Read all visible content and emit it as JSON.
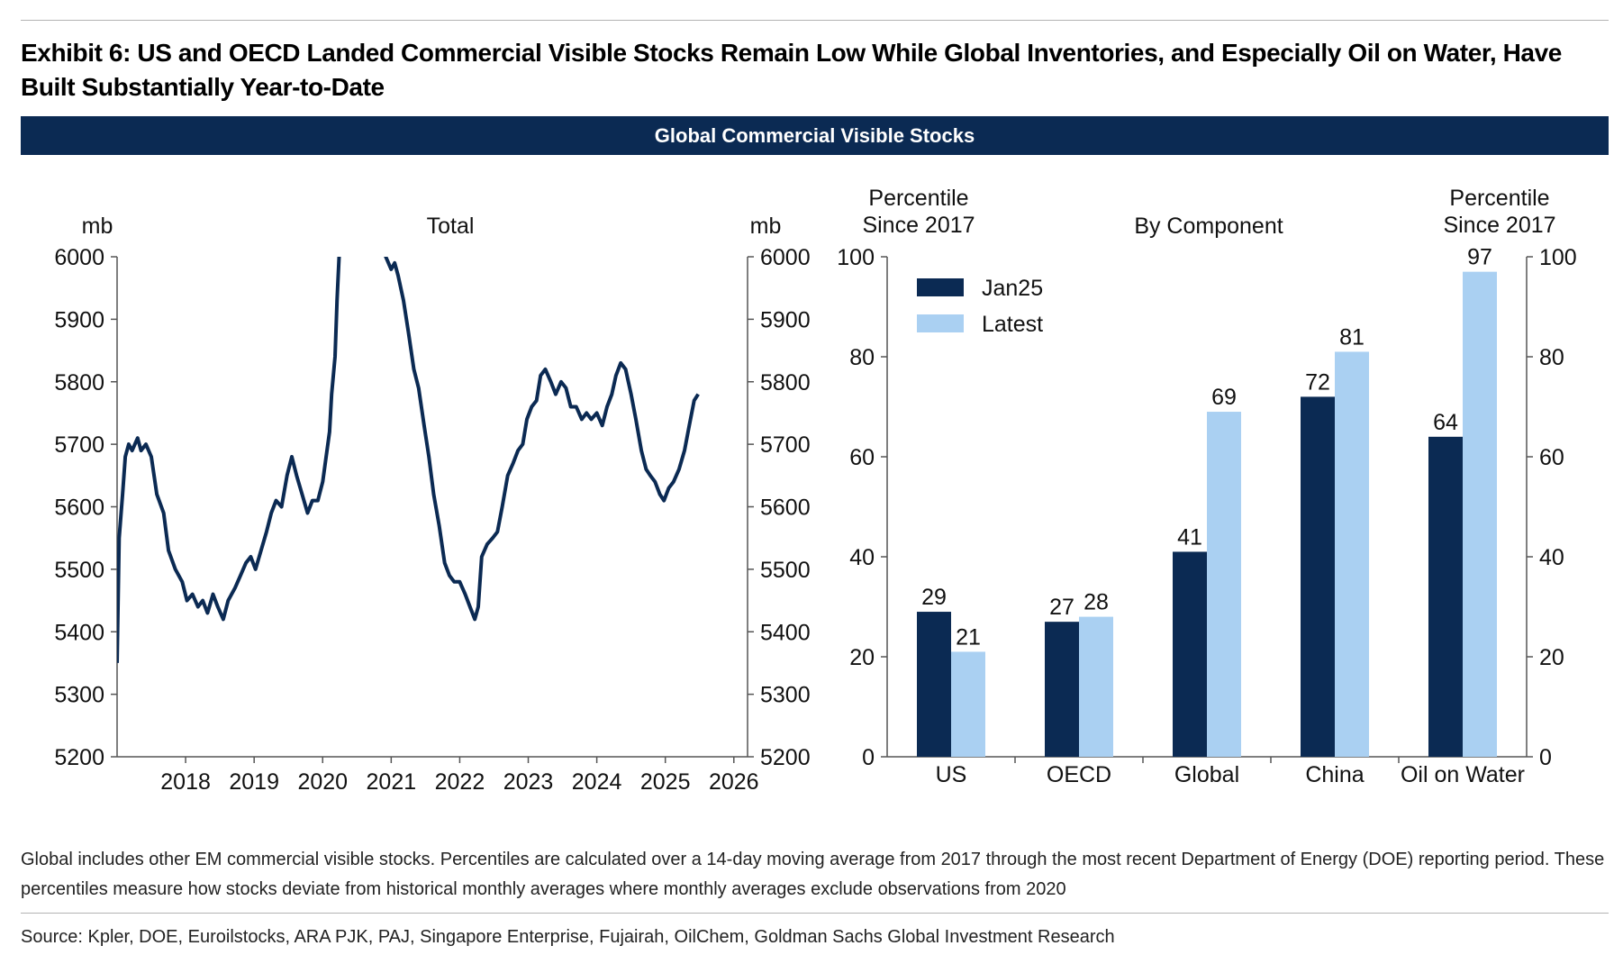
{
  "exhibit": {
    "title": "Exhibit 6: US and OECD Landed Commercial Visible Stocks Remain Low While Global Inventories, and Especially Oil on Water, Have Built Substantially Year-to-Date",
    "banner": "Global Commercial Visible Stocks",
    "footnote": "Global includes other EM commercial visible stocks. Percentiles are calculated over a 14-day moving average from 2017 through the most recent Department of Energy (DOE) reporting period. These percentiles measure how stocks deviate from historical monthly averages where monthly averages exclude observations from 2020",
    "source": "Source: Kpler, DOE, Euroilstocks, ARA PJK, PAJ, Singapore Enterprise, Fujairah, OilChem, Goldman Sachs Global Investment Research"
  },
  "colors": {
    "banner": "#0b2a53",
    "line": "#0b2a53",
    "jan25": "#0b2a53",
    "latest": "#aad0f2"
  },
  "chart_data": [
    {
      "type": "line",
      "title": "Total",
      "ylabel_left": "mb",
      "ylabel_right": "mb",
      "ylim": [
        5200,
        6000
      ],
      "xlim": [
        2017.0,
        2026.2
      ],
      "x_ticks": [
        "2018",
        "2019",
        "2020",
        "2021",
        "2022",
        "2023",
        "2024",
        "2025",
        "2026"
      ],
      "y_ticks": [
        5200,
        5300,
        5400,
        5500,
        5600,
        5700,
        5800,
        5900,
        6000
      ],
      "grid": false,
      "series": [
        {
          "points": [
            [
              2017.0,
              5350
            ],
            [
              2017.03,
              5550
            ],
            [
              2017.08,
              5620
            ],
            [
              2017.12,
              5680
            ],
            [
              2017.17,
              5700
            ],
            [
              2017.22,
              5690
            ],
            [
              2017.3,
              5710
            ],
            [
              2017.35,
              5690
            ],
            [
              2017.42,
              5700
            ],
            [
              2017.5,
              5680
            ],
            [
              2017.58,
              5620
            ],
            [
              2017.68,
              5590
            ],
            [
              2017.75,
              5530
            ],
            [
              2017.85,
              5500
            ],
            [
              2017.95,
              5480
            ],
            [
              2018.02,
              5450
            ],
            [
              2018.1,
              5460
            ],
            [
              2018.18,
              5440
            ],
            [
              2018.25,
              5450
            ],
            [
              2018.32,
              5430
            ],
            [
              2018.4,
              5460
            ],
            [
              2018.47,
              5440
            ],
            [
              2018.55,
              5420
            ],
            [
              2018.62,
              5450
            ],
            [
              2018.72,
              5470
            ],
            [
              2018.8,
              5490
            ],
            [
              2018.88,
              5510
            ],
            [
              2018.95,
              5520
            ],
            [
              2019.02,
              5500
            ],
            [
              2019.1,
              5530
            ],
            [
              2019.18,
              5560
            ],
            [
              2019.25,
              5590
            ],
            [
              2019.32,
              5610
            ],
            [
              2019.4,
              5600
            ],
            [
              2019.48,
              5650
            ],
            [
              2019.55,
              5680
            ],
            [
              2019.62,
              5650
            ],
            [
              2019.7,
              5620
            ],
            [
              2019.78,
              5590
            ],
            [
              2019.85,
              5610
            ],
            [
              2019.93,
              5610
            ],
            [
              2020.0,
              5640
            ],
            [
              2020.05,
              5680
            ],
            [
              2020.1,
              5720
            ],
            [
              2020.13,
              5780
            ],
            [
              2020.18,
              5840
            ],
            [
              2020.21,
              5930
            ],
            [
              2020.24,
              6000
            ],
            [
              2020.25,
              6010
            ],
            [
              2020.9,
              6010
            ],
            [
              2020.92,
              6000
            ],
            [
              2021.0,
              5980
            ],
            [
              2021.05,
              5990
            ],
            [
              2021.1,
              5970
            ],
            [
              2021.18,
              5930
            ],
            [
              2021.25,
              5880
            ],
            [
              2021.33,
              5820
            ],
            [
              2021.4,
              5790
            ],
            [
              2021.48,
              5730
            ],
            [
              2021.55,
              5680
            ],
            [
              2021.62,
              5620
            ],
            [
              2021.7,
              5570
            ],
            [
              2021.78,
              5510
            ],
            [
              2021.85,
              5490
            ],
            [
              2021.92,
              5480
            ],
            [
              2022.0,
              5480
            ],
            [
              2022.08,
              5460
            ],
            [
              2022.15,
              5440
            ],
            [
              2022.22,
              5420
            ],
            [
              2022.27,
              5440
            ],
            [
              2022.32,
              5520
            ],
            [
              2022.4,
              5540
            ],
            [
              2022.48,
              5550
            ],
            [
              2022.55,
              5560
            ],
            [
              2022.62,
              5600
            ],
            [
              2022.7,
              5650
            ],
            [
              2022.78,
              5670
            ],
            [
              2022.85,
              5690
            ],
            [
              2022.92,
              5700
            ],
            [
              2022.98,
              5740
            ],
            [
              2023.05,
              5760
            ],
            [
              2023.12,
              5770
            ],
            [
              2023.18,
              5810
            ],
            [
              2023.25,
              5820
            ],
            [
              2023.33,
              5800
            ],
            [
              2023.4,
              5780
            ],
            [
              2023.48,
              5800
            ],
            [
              2023.55,
              5790
            ],
            [
              2023.62,
              5760
            ],
            [
              2023.7,
              5760
            ],
            [
              2023.78,
              5740
            ],
            [
              2023.85,
              5750
            ],
            [
              2023.92,
              5740
            ],
            [
              2024.0,
              5750
            ],
            [
              2024.08,
              5730
            ],
            [
              2024.15,
              5760
            ],
            [
              2024.22,
              5780
            ],
            [
              2024.28,
              5810
            ],
            [
              2024.35,
              5830
            ],
            [
              2024.42,
              5820
            ],
            [
              2024.5,
              5780
            ],
            [
              2024.57,
              5740
            ],
            [
              2024.65,
              5690
            ],
            [
              2024.72,
              5660
            ],
            [
              2024.78,
              5650
            ],
            [
              2024.85,
              5640
            ],
            [
              2024.92,
              5620
            ],
            [
              2024.98,
              5610
            ],
            [
              2025.05,
              5630
            ],
            [
              2025.12,
              5640
            ],
            [
              2025.2,
              5660
            ],
            [
              2025.28,
              5690
            ],
            [
              2025.35,
              5730
            ],
            [
              2025.42,
              5770
            ],
            [
              2025.48,
              5780
            ]
          ]
        }
      ]
    },
    {
      "type": "bar",
      "title": "By Component",
      "ylabel_left": "Percentile\nSince 2017",
      "ylabel_right": "Percentile\nSince 2017",
      "ylim": [
        0,
        100
      ],
      "y_ticks": [
        0,
        20,
        40,
        60,
        80,
        100
      ],
      "grid": false,
      "legend_position": "top-left",
      "categories": [
        "US",
        "OECD",
        "Global",
        "China",
        "Oil on Water"
      ],
      "series": [
        {
          "name": "Jan25",
          "values": [
            29,
            27,
            41,
            72,
            64
          ]
        },
        {
          "name": "Latest",
          "values": [
            21,
            28,
            69,
            81,
            97
          ]
        }
      ]
    }
  ]
}
